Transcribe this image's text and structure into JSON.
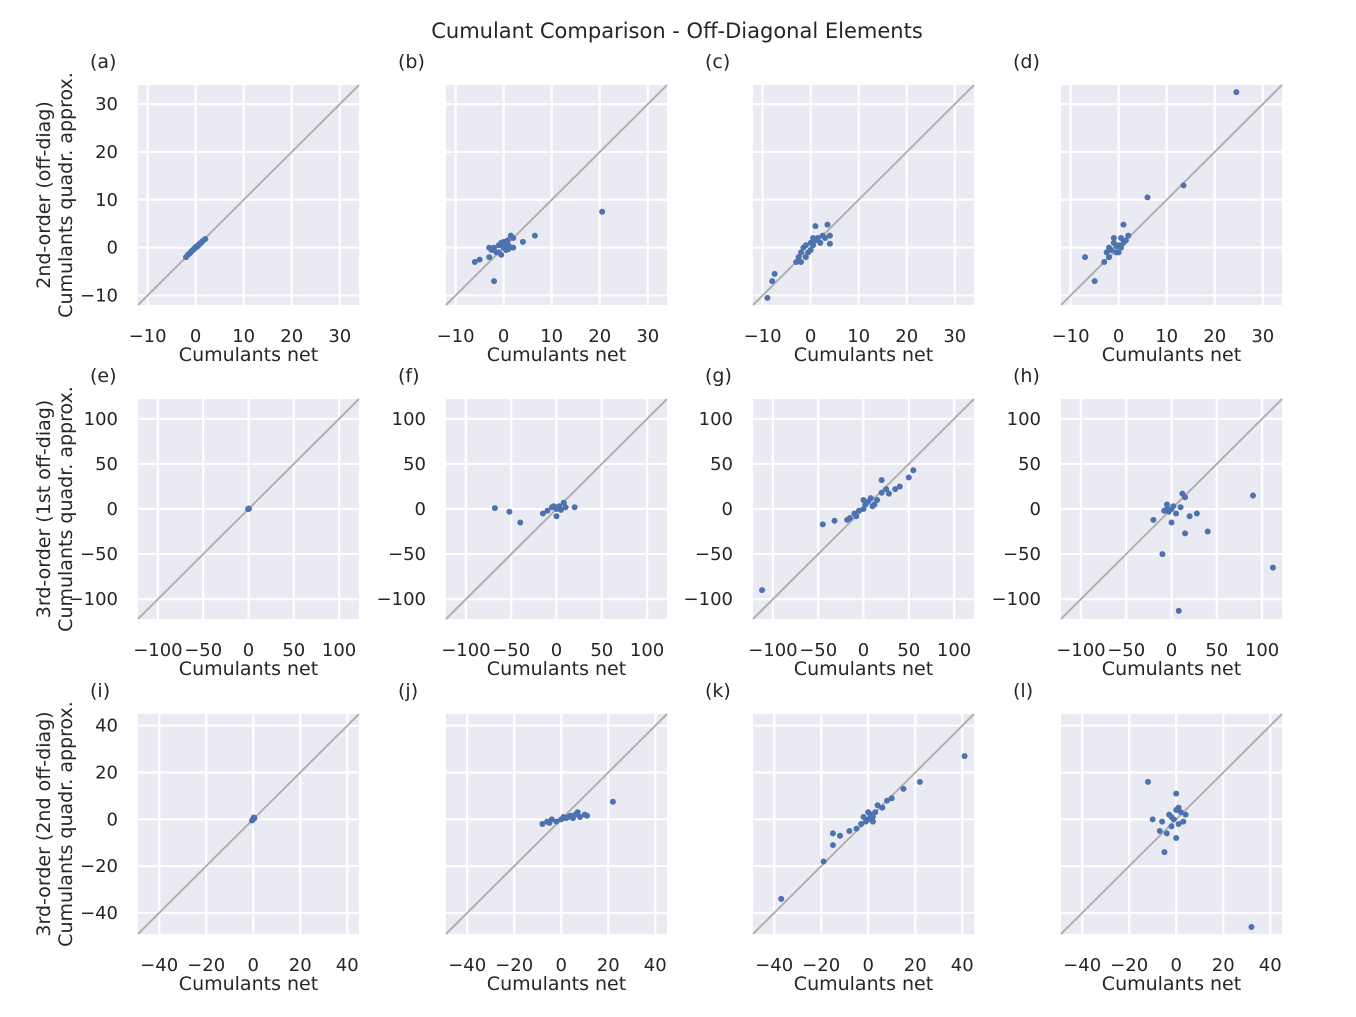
{
  "figure": {
    "title": "Cumulant Comparison - Off-Diagonal Elements",
    "colors": {
      "panel_bg": "#eaeaf2",
      "grid": "#ffffff",
      "point": "#4c72b0",
      "diagonal": "#b0b0b0",
      "text": "#262626"
    }
  },
  "rows": [
    {
      "ylabel_line1": "2nd-order (off-diag)",
      "ylabel_line2": "Cumulants quadr. approx."
    },
    {
      "ylabel_line1": "3rd-order (1st off-diag)",
      "ylabel_line2": "Cumulants quadr. approx."
    },
    {
      "ylabel_line1": "3rd-order (2nd off-diag)",
      "ylabel_line2": "Cumulants quadr. approx."
    }
  ],
  "chart_data": [
    {
      "type": "scatter",
      "panel": "(a)",
      "xlabel": "Cumulants net",
      "xlim": [
        -12,
        34
      ],
      "ylim": [
        -12,
        34
      ],
      "xticks": [
        -10,
        0,
        10,
        20,
        30
      ],
      "yticks": [
        -10,
        0,
        10,
        20,
        30
      ],
      "ytick_labels_shown": true,
      "points": [
        [
          -2,
          -2
        ],
        [
          -1.6,
          -1.5
        ],
        [
          -1.2,
          -1.2
        ],
        [
          -0.8,
          -0.7
        ],
        [
          -0.4,
          -0.4
        ],
        [
          0,
          0
        ],
        [
          0.3,
          0.2
        ],
        [
          0.6,
          0.6
        ],
        [
          0.9,
          0.8
        ],
        [
          1.2,
          1.1
        ],
        [
          1.5,
          1.4
        ],
        [
          2,
          1.8
        ],
        [
          -0.2,
          -0.1
        ],
        [
          0.1,
          0.2
        ],
        [
          0.5,
          0.4
        ],
        [
          1,
          0.9
        ],
        [
          -1,
          -0.9
        ],
        [
          -0.6,
          -0.5
        ]
      ]
    },
    {
      "type": "scatter",
      "panel": "(b)",
      "xlabel": "Cumulants net",
      "xlim": [
        -12,
        34
      ],
      "ylim": [
        -12,
        34
      ],
      "xticks": [
        -10,
        0,
        10,
        20,
        30
      ],
      "yticks": [
        -10,
        0,
        10,
        20,
        30
      ],
      "ytick_labels_shown": false,
      "points": [
        [
          -6,
          -3
        ],
        [
          -5,
          -2.5
        ],
        [
          -3,
          -2
        ],
        [
          -2.5,
          -0.5
        ],
        [
          -2,
          0
        ],
        [
          -1.5,
          -1
        ],
        [
          -1,
          0.5
        ],
        [
          -0.5,
          1
        ],
        [
          0,
          0
        ],
        [
          0,
          1.2
        ],
        [
          0.5,
          -0.5
        ],
        [
          1,
          0.5
        ],
        [
          1.5,
          2.5
        ],
        [
          2,
          0
        ],
        [
          2,
          2
        ],
        [
          -0.5,
          -1.5
        ],
        [
          -1,
          -1
        ],
        [
          0.3,
          0.3
        ],
        [
          -2,
          -7
        ],
        [
          4,
          1.2
        ],
        [
          6.5,
          2.5
        ],
        [
          20.5,
          7.5
        ],
        [
          -3,
          0
        ],
        [
          1,
          -0.3
        ],
        [
          0.8,
          1.5
        ]
      ]
    },
    {
      "type": "scatter",
      "panel": "(c)",
      "xlabel": "Cumulants net",
      "xlim": [
        -12,
        34
      ],
      "ylim": [
        -12,
        34
      ],
      "xticks": [
        -10,
        0,
        10,
        20,
        30
      ],
      "yticks": [
        -10,
        0,
        10,
        20,
        30
      ],
      "ytick_labels_shown": false,
      "points": [
        [
          -9,
          -10.5
        ],
        [
          -8,
          -7
        ],
        [
          -7.5,
          -5.5
        ],
        [
          -3,
          -3
        ],
        [
          -2.5,
          -2
        ],
        [
          -2,
          -1
        ],
        [
          -1.5,
          0
        ],
        [
          -1,
          0.5
        ],
        [
          -0.5,
          -1
        ],
        [
          0,
          1
        ],
        [
          0.5,
          0.5
        ],
        [
          1,
          1.5
        ],
        [
          1.5,
          2
        ],
        [
          2,
          1
        ],
        [
          2.5,
          2.5
        ],
        [
          3,
          2
        ],
        [
          3.5,
          4.8
        ],
        [
          4,
          2.5
        ],
        [
          4,
          0.8
        ],
        [
          1,
          4.5
        ],
        [
          -2,
          -3
        ],
        [
          0,
          -0.5
        ],
        [
          0.5,
          2
        ],
        [
          -1,
          -2
        ]
      ]
    },
    {
      "type": "scatter",
      "panel": "(d)",
      "xlabel": "Cumulants net",
      "xlim": [
        -12,
        34
      ],
      "ylim": [
        -12,
        34
      ],
      "xticks": [
        -10,
        0,
        10,
        20,
        30
      ],
      "yticks": [
        -10,
        0,
        10,
        20,
        30
      ],
      "ytick_labels_shown": false,
      "points": [
        [
          -7,
          -2
        ],
        [
          -5,
          -7
        ],
        [
          -3,
          -3
        ],
        [
          -2.5,
          -1
        ],
        [
          -2,
          0
        ],
        [
          -1.5,
          -0.5
        ],
        [
          -1,
          1
        ],
        [
          -0.5,
          -1
        ],
        [
          0,
          0.5
        ],
        [
          0.5,
          2
        ],
        [
          1,
          1
        ],
        [
          1.5,
          1.5
        ],
        [
          2,
          2.5
        ],
        [
          1,
          4.8
        ],
        [
          -1,
          2
        ],
        [
          0,
          -1
        ],
        [
          6,
          10.5
        ],
        [
          13.5,
          13
        ],
        [
          24.5,
          32.5
        ],
        [
          0.5,
          0
        ],
        [
          -2,
          -2
        ],
        [
          -0.5,
          0.3
        ]
      ]
    },
    {
      "type": "scatter",
      "panel": "(e)",
      "xlabel": "Cumulants net",
      "xlim": [
        -122,
        122
      ],
      "ylim": [
        -122,
        122
      ],
      "xticks": [
        -100,
        -50,
        0,
        50,
        100
      ],
      "yticks": [
        -100,
        -50,
        0,
        50,
        100
      ],
      "ytick_labels_shown": true,
      "points": [
        [
          0,
          0
        ],
        [
          0.5,
          0.3
        ],
        [
          -0.5,
          -0.3
        ],
        [
          0.3,
          0.5
        ]
      ]
    },
    {
      "type": "scatter",
      "panel": "(f)",
      "xlabel": "Cumulants net",
      "xlim": [
        -122,
        122
      ],
      "ylim": [
        -122,
        122
      ],
      "xticks": [
        -100,
        -50,
        0,
        50,
        100
      ],
      "yticks": [
        -100,
        -50,
        0,
        50,
        100
      ],
      "ytick_labels_shown": true,
      "points": [
        [
          -68,
          1
        ],
        [
          -52,
          -3
        ],
        [
          -40,
          -15
        ],
        [
          -15,
          -5
        ],
        [
          -10,
          -2
        ],
        [
          -5,
          2
        ],
        [
          0,
          0
        ],
        [
          3,
          3
        ],
        [
          5,
          -1
        ],
        [
          8,
          7
        ],
        [
          10,
          2
        ],
        [
          0,
          -8
        ],
        [
          20,
          2
        ],
        [
          -3,
          3
        ],
        [
          2,
          1
        ]
      ]
    },
    {
      "type": "scatter",
      "panel": "(g)",
      "xlabel": "Cumulants net",
      "xlim": [
        -122,
        122
      ],
      "ylim": [
        -122,
        122
      ],
      "xticks": [
        -100,
        -50,
        0,
        50,
        100
      ],
      "yticks": [
        -100,
        -50,
        0,
        50,
        100
      ],
      "ytick_labels_shown": true,
      "points": [
        [
          -112,
          -90
        ],
        [
          -45,
          -17
        ],
        [
          -32,
          -13
        ],
        [
          -18,
          -12
        ],
        [
          -15,
          -10
        ],
        [
          -10,
          -5
        ],
        [
          -5,
          -2
        ],
        [
          0,
          0
        ],
        [
          2,
          5
        ],
        [
          5,
          8
        ],
        [
          8,
          12
        ],
        [
          12,
          5
        ],
        [
          15,
          10
        ],
        [
          20,
          18
        ],
        [
          20,
          32
        ],
        [
          25,
          22
        ],
        [
          28,
          17
        ],
        [
          35,
          22
        ],
        [
          40,
          25
        ],
        [
          50,
          35
        ],
        [
          55,
          43
        ],
        [
          0,
          10
        ],
        [
          10,
          3
        ],
        [
          -8,
          -8
        ]
      ]
    },
    {
      "type": "scatter",
      "panel": "(h)",
      "xlabel": "Cumulants net",
      "xlim": [
        -122,
        122
      ],
      "ylim": [
        -122,
        122
      ],
      "xticks": [
        -100,
        -50,
        0,
        50,
        100
      ],
      "yticks": [
        -100,
        -50,
        0,
        50,
        100
      ],
      "ytick_labels_shown": true,
      "points": [
        [
          -20,
          -12
        ],
        [
          -10,
          -50
        ],
        [
          -8,
          -2
        ],
        [
          -5,
          5
        ],
        [
          -3,
          -3
        ],
        [
          0,
          0
        ],
        [
          2,
          3
        ],
        [
          5,
          -5
        ],
        [
          0,
          -15
        ],
        [
          8,
          -113
        ],
        [
          10,
          2
        ],
        [
          12,
          17
        ],
        [
          15,
          -27
        ],
        [
          20,
          -8
        ],
        [
          28,
          -5
        ],
        [
          40,
          -25
        ],
        [
          90,
          15
        ],
        [
          112,
          -65
        ],
        [
          15,
          13
        ],
        [
          -5,
          0
        ]
      ]
    },
    {
      "type": "scatter",
      "panel": "(i)",
      "xlabel": "Cumulants net",
      "xlim": [
        -49,
        45
      ],
      "ylim": [
        -49,
        45
      ],
      "xticks": [
        -40,
        -20,
        0,
        20,
        40
      ],
      "yticks": [
        -40,
        -20,
        0,
        20,
        40
      ],
      "ytick_labels_shown": true,
      "points": [
        [
          0,
          0
        ],
        [
          0.5,
          0.5
        ],
        [
          -0.5,
          -0.5
        ],
        [
          0.2,
          0.8
        ]
      ]
    },
    {
      "type": "scatter",
      "panel": "(j)",
      "xlabel": "Cumulants net",
      "xlim": [
        -49,
        45
      ],
      "ylim": [
        -49,
        45
      ],
      "xticks": [
        -40,
        -20,
        0,
        20,
        40
      ],
      "yticks": [
        -40,
        -20,
        0,
        20,
        40
      ],
      "ytick_labels_shown": false,
      "points": [
        [
          -8,
          -2
        ],
        [
          -6,
          -1
        ],
        [
          -4,
          0
        ],
        [
          -2,
          -1
        ],
        [
          0,
          0
        ],
        [
          1,
          1
        ],
        [
          2,
          0.5
        ],
        [
          3,
          1
        ],
        [
          5,
          0.5
        ],
        [
          6,
          2
        ],
        [
          8,
          1
        ],
        [
          10,
          2
        ],
        [
          11,
          1.5
        ],
        [
          22,
          7.5
        ],
        [
          -5,
          -1.5
        ],
        [
          4,
          1.5
        ],
        [
          7,
          3
        ]
      ]
    },
    {
      "type": "scatter",
      "panel": "(k)",
      "xlabel": "Cumulants net",
      "xlim": [
        -49,
        45
      ],
      "ylim": [
        -49,
        45
      ],
      "xticks": [
        -40,
        -20,
        0,
        20,
        40
      ],
      "yticks": [
        -40,
        -20,
        0,
        20,
        40
      ],
      "ytick_labels_shown": false,
      "points": [
        [
          -37,
          -34
        ],
        [
          -19,
          -18
        ],
        [
          -15,
          -11
        ],
        [
          -15,
          -6
        ],
        [
          -12,
          -7
        ],
        [
          -8,
          -5
        ],
        [
          -5,
          -4
        ],
        [
          -3,
          -2
        ],
        [
          -1,
          -1
        ],
        [
          0,
          0
        ],
        [
          1,
          2
        ],
        [
          2,
          1
        ],
        [
          3,
          3
        ],
        [
          4,
          6
        ],
        [
          6,
          5
        ],
        [
          8,
          8
        ],
        [
          10,
          9
        ],
        [
          15,
          13
        ],
        [
          22,
          16
        ],
        [
          41,
          27
        ],
        [
          0,
          3
        ],
        [
          2,
          -1
        ],
        [
          -2,
          1
        ]
      ]
    },
    {
      "type": "scatter",
      "panel": "(l)",
      "xlabel": "Cumulants net",
      "xlim": [
        -49,
        45
      ],
      "ylim": [
        -49,
        45
      ],
      "xticks": [
        -40,
        -20,
        0,
        20,
        40
      ],
      "yticks": [
        -40,
        -20,
        0,
        20,
        40
      ],
      "ytick_labels_shown": false,
      "points": [
        [
          -12,
          16
        ],
        [
          -10,
          0
        ],
        [
          -7,
          -5
        ],
        [
          -5,
          -14
        ],
        [
          -4,
          -6
        ],
        [
          -3,
          2
        ],
        [
          -2,
          -3
        ],
        [
          -1,
          0
        ],
        [
          0,
          4
        ],
        [
          0,
          11
        ],
        [
          1,
          -2
        ],
        [
          2,
          3
        ],
        [
          3,
          -1
        ],
        [
          4,
          2
        ],
        [
          0,
          -8
        ],
        [
          -6,
          -1
        ],
        [
          1,
          5
        ],
        [
          32,
          -46
        ],
        [
          -2,
          1
        ]
      ]
    }
  ]
}
